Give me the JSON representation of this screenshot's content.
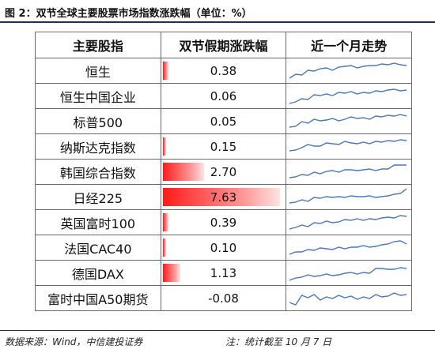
{
  "figure": {
    "title": "图 2：双节全球主要股票市场指数涨跌幅（单位：%）"
  },
  "table": {
    "headers": [
      "主要股指",
      "双节假期涨跌幅",
      "近一个月走势"
    ],
    "rows": [
      {
        "name": "恒生",
        "change": "0.38",
        "bar_fraction": 0.05,
        "trend": [
          22,
          17,
          18,
          12,
          13,
          10,
          9,
          12,
          8,
          7,
          6,
          9,
          7,
          6,
          6,
          4,
          5,
          3,
          5,
          6
        ]
      },
      {
        "name": "恒生中国企业",
        "change": "0.06",
        "bar_fraction": 0.0,
        "trend": [
          22,
          20,
          16,
          17,
          11,
          12,
          10,
          12,
          8,
          9,
          7,
          10,
          8,
          9,
          6,
          7,
          5,
          4,
          6,
          5
        ]
      },
      {
        "name": "标普500",
        "change": "0.05",
        "bar_fraction": 0.0,
        "trend": [
          20,
          19,
          13,
          15,
          10,
          12,
          11,
          9,
          12,
          10,
          7,
          9,
          8,
          10,
          6,
          7,
          5,
          6,
          4,
          6
        ]
      },
      {
        "name": "纳斯达克指数",
        "change": "0.15",
        "bar_fraction": 0.02,
        "trend": [
          18,
          17,
          14,
          10,
          12,
          12,
          8,
          9,
          10,
          6,
          8,
          9,
          7,
          9,
          6,
          7,
          5,
          6,
          4,
          5
        ]
      },
      {
        "name": "韩国综合指数",
        "change": "2.70",
        "bar_fraction": 0.354,
        "trend": [
          20,
          19,
          16,
          17,
          13,
          15,
          12,
          11,
          13,
          10,
          10,
          11,
          10,
          9,
          11,
          9,
          9,
          4,
          4,
          4
        ]
      },
      {
        "name": "日经225",
        "change": "7.63",
        "bar_fraction": 1.0,
        "trend": [
          20,
          19,
          16,
          18,
          13,
          14,
          12,
          13,
          12,
          13,
          11,
          12,
          12,
          11,
          13,
          12,
          11,
          9,
          8,
          2
        ]
      },
      {
        "name": "英国富时100",
        "change": "0.39",
        "bar_fraction": 0.05,
        "trend": [
          21,
          19,
          16,
          18,
          13,
          14,
          11,
          13,
          12,
          9,
          10,
          8,
          10,
          8,
          9,
          7,
          6,
          7,
          4,
          5
        ]
      },
      {
        "name": "法国CAC40",
        "change": "0.10",
        "bar_fraction": 0.01,
        "trend": [
          21,
          18,
          18,
          15,
          16,
          13,
          14,
          15,
          12,
          14,
          12,
          12,
          10,
          12,
          11,
          9,
          8,
          5,
          4,
          8
        ]
      },
      {
        "name": "德国DAX",
        "change": "1.13",
        "bar_fraction": 0.148,
        "trend": [
          22,
          19,
          18,
          15,
          17,
          16,
          14,
          16,
          15,
          13,
          12,
          14,
          12,
          13,
          7,
          7,
          8,
          8,
          6,
          7
        ]
      },
      {
        "name": "富时中国A50期货",
        "change": "-0.08",
        "bar_fraction": 0.0,
        "trend": [
          18,
          21,
          9,
          12,
          8,
          15,
          11,
          13,
          9,
          12,
          10,
          14,
          11,
          13,
          8,
          11,
          10,
          6,
          9,
          8
        ]
      }
    ]
  },
  "footer": {
    "source": "数据来源：Wind，中信建投证券",
    "note": "注：统计截至 10 月 7 日"
  },
  "colors": {
    "bar": "#ff1a1a",
    "trend_line": "#4a77c0",
    "rule": "#1f2f5e"
  }
}
